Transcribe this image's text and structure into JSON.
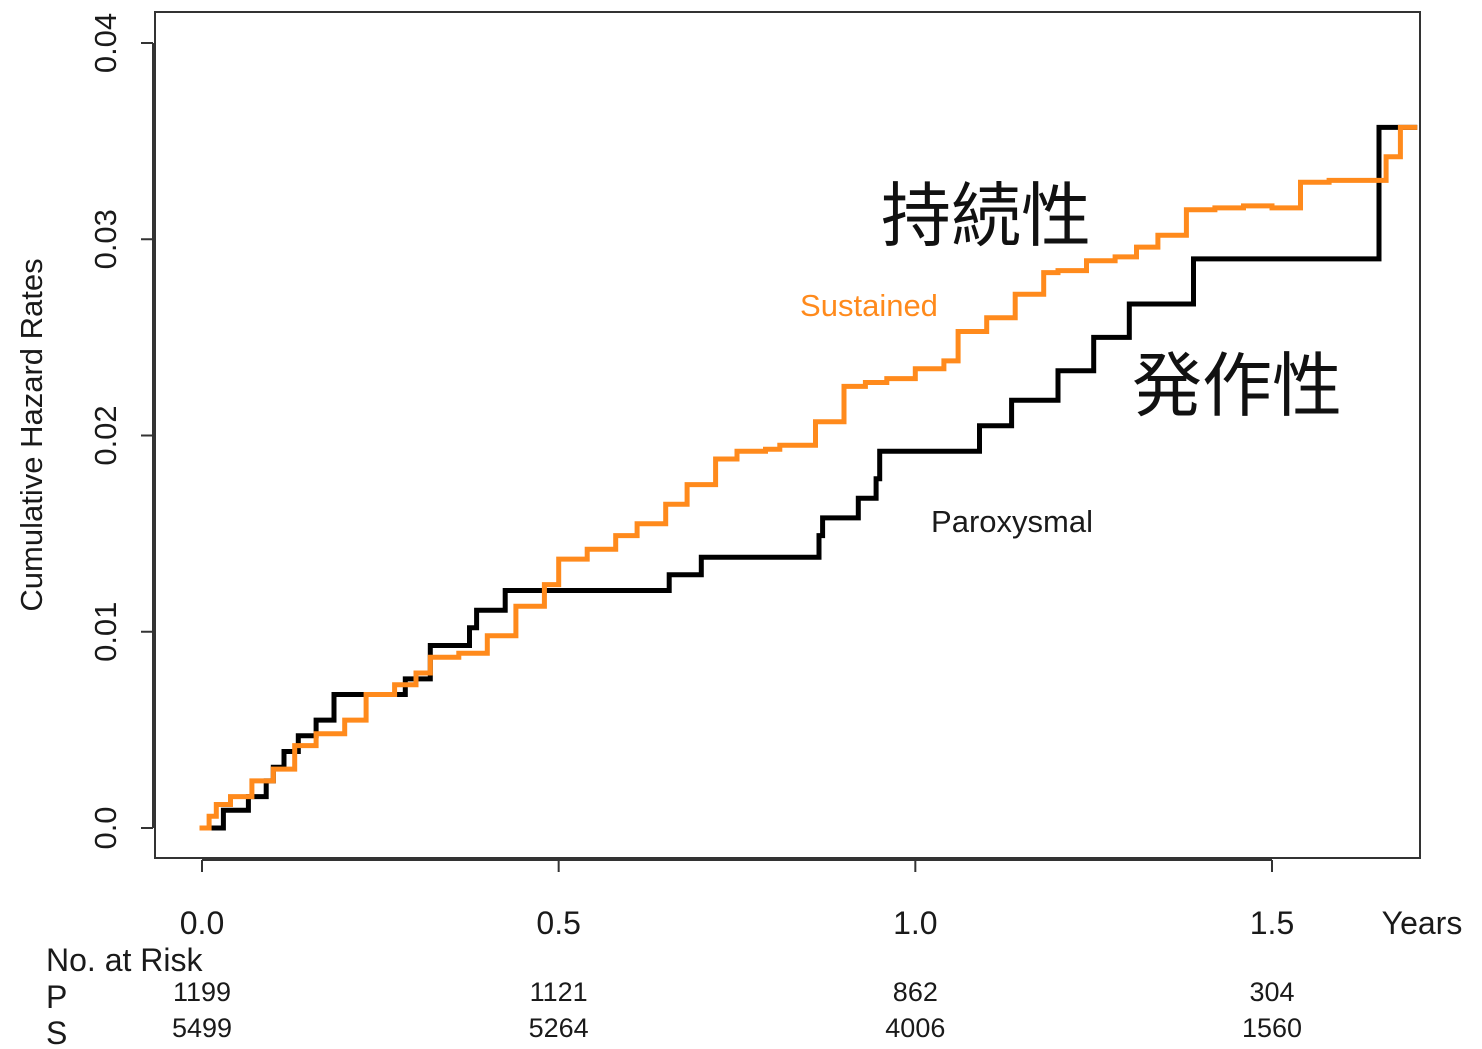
{
  "chart_data": {
    "type": "line",
    "step": true,
    "ylabel": "Cumulative Hazard Rates",
    "x_unit_label": "Years",
    "xlim": [
      0,
      1.7
    ],
    "ylim": [
      0,
      0.04
    ],
    "x_ticks": [
      0.0,
      0.5,
      1.0,
      1.5
    ],
    "x_tick_labels": [
      "0.0",
      "0.5",
      "1.0",
      "1.5"
    ],
    "y_ticks": [
      0.0,
      0.01,
      0.02,
      0.03,
      0.04
    ],
    "y_tick_labels": [
      "0.0",
      "0.01",
      "0.02",
      "0.03",
      "0.04"
    ],
    "grid": false,
    "legend": "none",
    "series": [
      {
        "name": "Paroxysmal",
        "label_jp": "発作性",
        "color": "#000000",
        "x": [
          0.0,
          0.03,
          0.065,
          0.09,
          0.1,
          0.115,
          0.135,
          0.16,
          0.185,
          0.285,
          0.32,
          0.375,
          0.385,
          0.425,
          0.655,
          0.7,
          0.865,
          0.87,
          0.92,
          0.945,
          0.95,
          1.09,
          1.135,
          1.2,
          1.25,
          1.3,
          1.39,
          1.65,
          1.7
        ],
        "y": [
          0.0,
          0.0009,
          0.0016,
          0.0024,
          0.0031,
          0.0039,
          0.0047,
          0.0055,
          0.0068,
          0.0076,
          0.0093,
          0.0102,
          0.0111,
          0.0121,
          0.0129,
          0.0138,
          0.0149,
          0.0158,
          0.0168,
          0.0178,
          0.0192,
          0.0205,
          0.0218,
          0.0233,
          0.025,
          0.0267,
          0.029,
          0.0357,
          0.0357
        ]
      },
      {
        "name": "Sustained",
        "label_jp": "持続性",
        "color": "#ff8a1c",
        "x": [
          0.0,
          0.01,
          0.02,
          0.04,
          0.07,
          0.1,
          0.13,
          0.16,
          0.2,
          0.23,
          0.27,
          0.3,
          0.32,
          0.36,
          0.4,
          0.44,
          0.48,
          0.5,
          0.54,
          0.58,
          0.61,
          0.65,
          0.68,
          0.72,
          0.75,
          0.79,
          0.81,
          0.86,
          0.9,
          0.93,
          0.96,
          1.0,
          1.04,
          1.06,
          1.1,
          1.14,
          1.18,
          1.2,
          1.24,
          1.28,
          1.31,
          1.34,
          1.38,
          1.42,
          1.46,
          1.5,
          1.54,
          1.58,
          1.64,
          1.66,
          1.68,
          1.7
        ],
        "y": [
          0.0,
          0.0006,
          0.0012,
          0.0016,
          0.0024,
          0.003,
          0.0042,
          0.0048,
          0.0055,
          0.0068,
          0.0073,
          0.0079,
          0.0087,
          0.0089,
          0.0098,
          0.0113,
          0.0124,
          0.0137,
          0.0142,
          0.0149,
          0.0155,
          0.0165,
          0.0175,
          0.0188,
          0.0192,
          0.0193,
          0.0195,
          0.0207,
          0.0225,
          0.0227,
          0.0229,
          0.0234,
          0.0238,
          0.0253,
          0.026,
          0.0272,
          0.0283,
          0.0284,
          0.0289,
          0.0291,
          0.0296,
          0.0302,
          0.0315,
          0.0316,
          0.0317,
          0.0316,
          0.0329,
          0.033,
          0.033,
          0.0342,
          0.0357,
          0.0357
        ]
      }
    ],
    "risk_table": {
      "title": "No. at Risk",
      "times": [
        0.0,
        0.5,
        1.0,
        1.5
      ],
      "rows": [
        {
          "label": "P",
          "values": [
            "1199",
            "1121",
            "862",
            "304"
          ]
        },
        {
          "label": "S",
          "values": [
            "5499",
            "5264",
            "4006",
            "1560"
          ]
        }
      ]
    }
  }
}
